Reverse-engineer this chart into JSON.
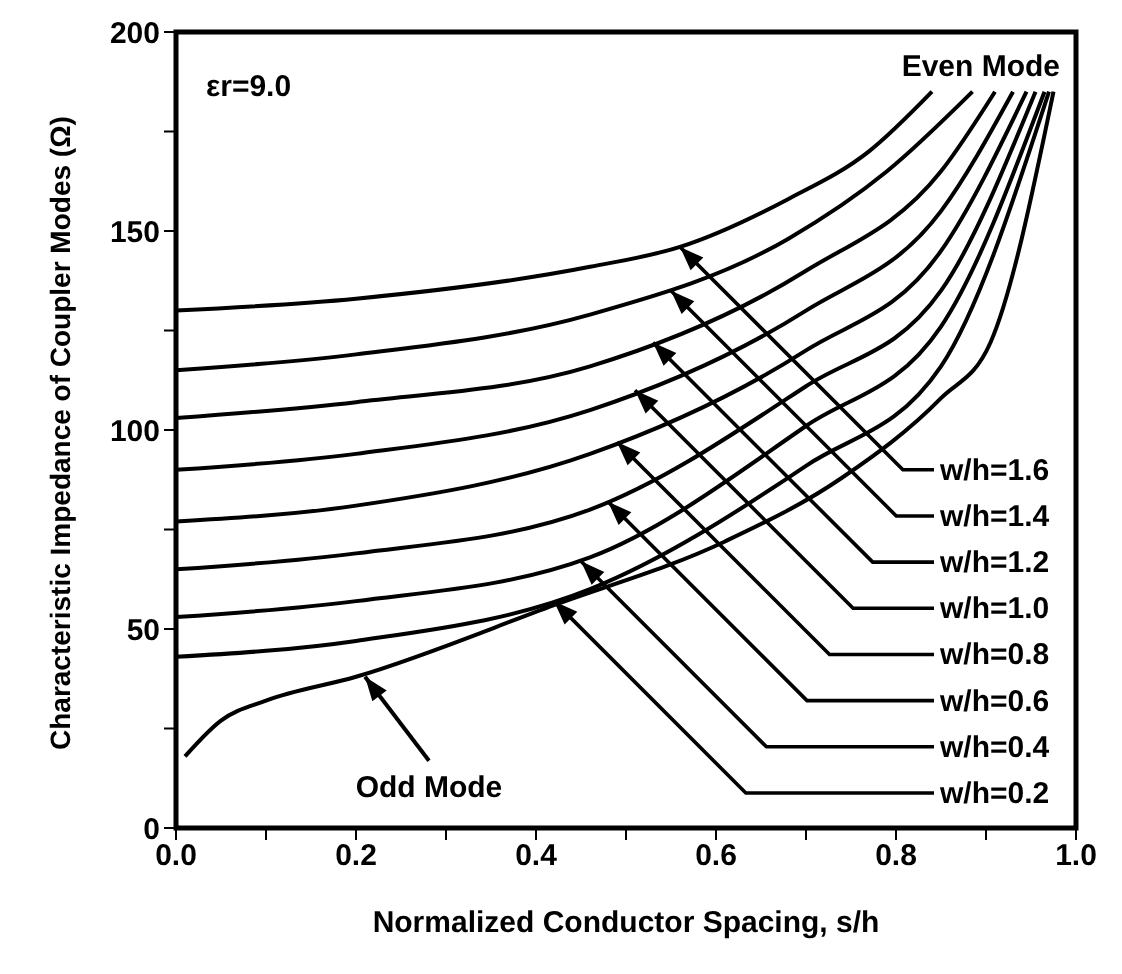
{
  "chart_data": {
    "type": "line",
    "xlabel": "Normalized Conductor Spacing, s/h",
    "ylabel": "Characteristic Impedance of Coupler Modes (Ω)",
    "xlim": [
      0,
      1
    ],
    "xticks": [
      {
        "value": 0,
        "label": "0.0"
      },
      {
        "value": 0.1,
        "label": null
      },
      0.2,
      {
        "value": 0.3,
        "label": null
      },
      0.4,
      {
        "value": 0.5,
        "label": null
      },
      0.6,
      {
        "value": 0.7,
        "label": null
      },
      0.8,
      {
        "value": 0.9,
        "label": null
      },
      {
        "value": 1,
        "label": "1.0"
      }
    ],
    "ylim": [
      0,
      200
    ],
    "yticks": [
      0,
      {
        "value": 25,
        "label": null
      },
      50,
      {
        "value": 75,
        "label": null
      },
      100,
      {
        "value": 125,
        "label": null
      },
      150,
      {
        "value": 175,
        "label": null
      },
      200
    ],
    "grid": false,
    "legend": false,
    "marker": "none",
    "line_style": "solid",
    "series": [
      {
        "color": "#000000",
        "x": [
          0,
          0.2,
          0.46,
          0.56,
          0.68,
          0.77,
          0.84
        ],
        "values": [
          130,
          133,
          141,
          146,
          158,
          170,
          185
        ]
      },
      {
        "color": "#000000",
        "x": [
          0,
          0.2,
          0.46,
          0.68,
          0.79,
          0.885
        ],
        "values": [
          115,
          119,
          129,
          148,
          165,
          185
        ]
      },
      {
        "color": "#000000",
        "x": [
          0,
          0.2,
          0.46,
          0.7,
          0.85,
          0.91
        ],
        "values": [
          103,
          107,
          116,
          140,
          165,
          185
        ]
      },
      {
        "color": "#000000",
        "x": [
          0,
          0.2,
          0.46,
          0.7,
          0.85,
          0.93
        ],
        "values": [
          90,
          94,
          105,
          130,
          155,
          185
        ]
      },
      {
        "color": "#000000",
        "x": [
          0,
          0.2,
          0.46,
          0.7,
          0.85,
          0.945
        ],
        "values": [
          77,
          81,
          94,
          120,
          145,
          185
        ]
      },
      {
        "color": "#000000",
        "x": [
          0,
          0.2,
          0.46,
          0.7,
          0.85,
          0.955
        ],
        "values": [
          65,
          69,
          80,
          111,
          135,
          185
        ]
      },
      {
        "color": "#000000",
        "x": [
          0,
          0.2,
          0.46,
          0.7,
          0.85,
          0.965
        ],
        "values": [
          53,
          57,
          68,
          101,
          126,
          185
        ]
      },
      {
        "color": "#000000",
        "x": [
          0,
          0.2,
          0.46,
          0.7,
          0.85,
          0.97
        ],
        "values": [
          43,
          47,
          60,
          91,
          116,
          185
        ]
      },
      {
        "color": "#000000",
        "x": [
          0.01,
          0.05,
          0.1,
          0.2,
          0.42,
          0.61,
          0.74,
          0.85,
          0.905,
          0.975
        ],
        "values": [
          18,
          27,
          32,
          38,
          56,
          72,
          88,
          108,
          122,
          185
        ]
      }
    ],
    "annotations": [
      "εr=9.0",
      "Even Mode",
      {
        "text": "w/h=1.6",
        "x": 0.56,
        "y": 146
      },
      {
        "text": "w/h=1.4",
        "x": 0.55,
        "y": 135
      },
      {
        "text": "w/h=1.2",
        "x": 0.53,
        "y": 122
      },
      {
        "text": "w/h=1.0",
        "x": 0.51,
        "y": 110
      },
      {
        "text": "w/h=0.8",
        "x": 0.49,
        "y": 97
      },
      {
        "text": "w/h=0.6",
        "x": 0.48,
        "y": 82
      },
      {
        "text": "w/h=0.4",
        "x": 0.45,
        "y": 67
      },
      {
        "text": "w/h=0.2",
        "x": 0.42,
        "y": 57
      },
      {
        "text": "Odd Mode",
        "x": 0.21,
        "y": 38
      }
    ]
  }
}
